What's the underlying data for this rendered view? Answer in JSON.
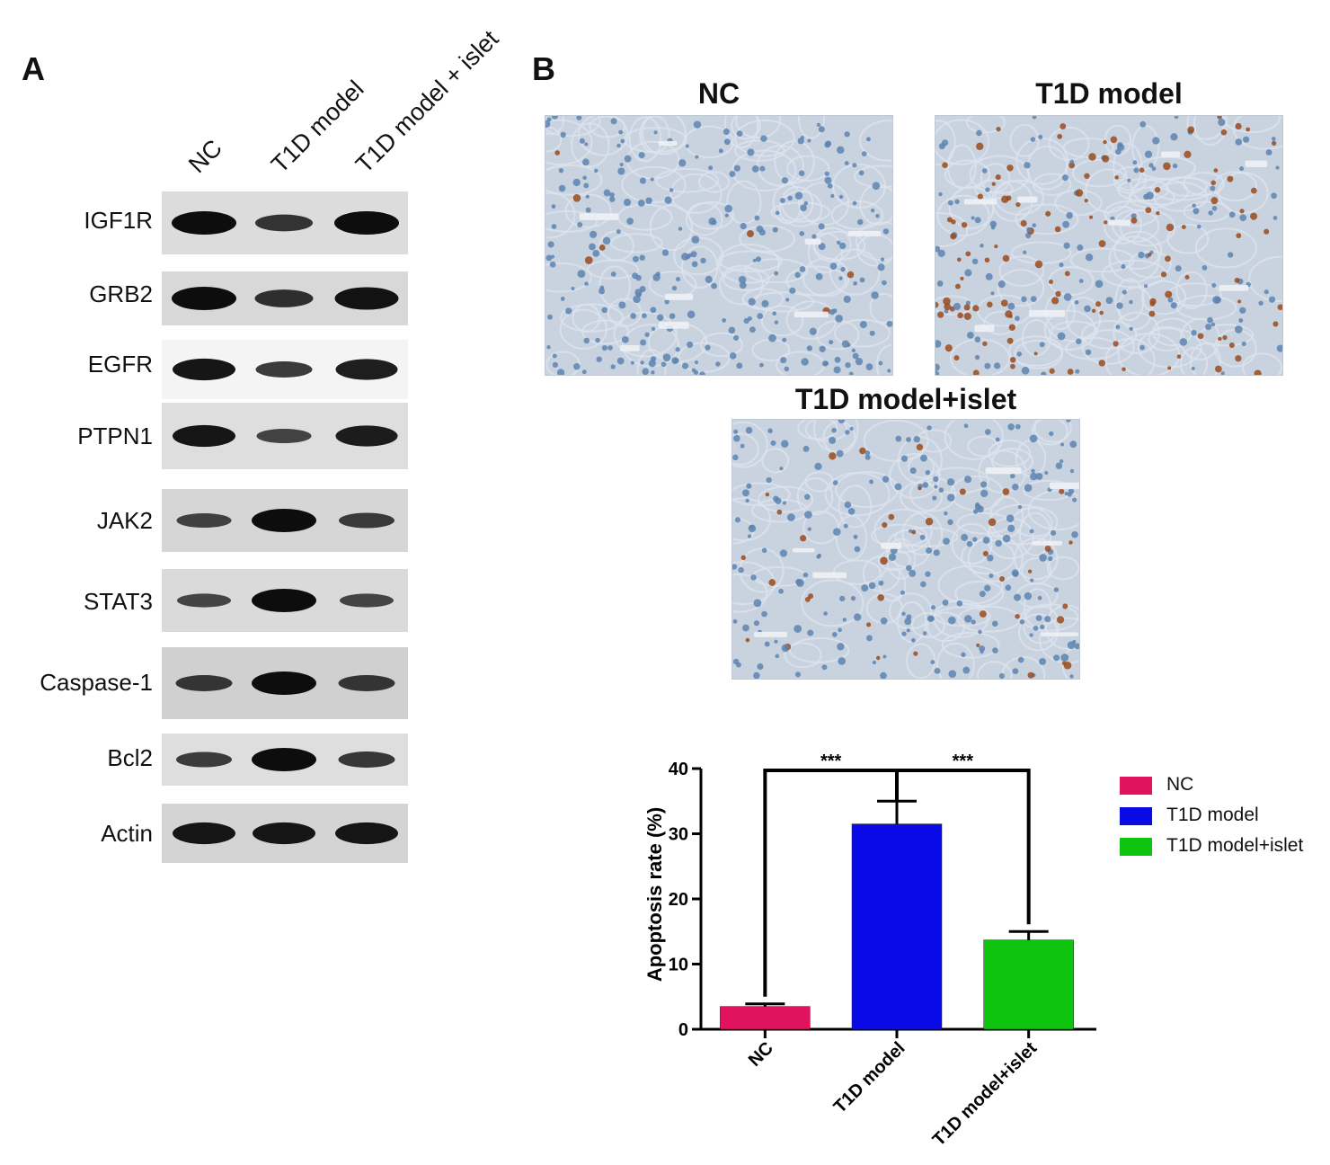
{
  "panels": {
    "a": "A",
    "b": "B"
  },
  "panel_a": {
    "lanes": [
      "NC",
      "T1D model",
      "T1D model + islet"
    ],
    "rows": [
      {
        "label": "IGF1R",
        "bands": [
          1.0,
          0.6,
          1.0
        ],
        "bg": "#dcdcdc"
      },
      {
        "label": "GRB2",
        "bands": [
          1.0,
          0.65,
          0.95
        ],
        "bg": "#d8d8d8"
      },
      {
        "label": "EGFR",
        "bands": [
          0.9,
          0.55,
          0.85
        ],
        "bg": "#f4f4f4"
      },
      {
        "label": "PTPN1",
        "bands": [
          0.9,
          0.45,
          0.85
        ],
        "bg": "#dedede"
      },
      {
        "label": "JAK2",
        "bands": [
          0.45,
          1.0,
          0.5
        ],
        "bg": "#d6d6d6"
      },
      {
        "label": "STAT3",
        "bands": [
          0.4,
          1.0,
          0.4
        ],
        "bg": "#dadada"
      },
      {
        "label": "Caspase-1",
        "bands": [
          0.55,
          1.0,
          0.55
        ],
        "bg": "#d0d0d0"
      },
      {
        "label": "Bcl2",
        "bands": [
          0.5,
          1.0,
          0.55
        ],
        "bg": "#dedede"
      },
      {
        "label": "Actin",
        "bands": [
          0.9,
          0.9,
          0.9
        ],
        "bg": "#d4d4d4"
      }
    ]
  },
  "panel_b": {
    "micrographs": {
      "nc_title": "NC",
      "t1d_title": "T1D model",
      "islet_title": "T1D model+islet"
    }
  },
  "chart_data": {
    "type": "bar",
    "categories": [
      "NC",
      "T1D model",
      "T1D model+islet"
    ],
    "values": [
      3.5,
      31.5,
      13.7
    ],
    "errors": [
      0.4,
      3.5,
      1.3
    ],
    "colors": [
      "#e0145e",
      "#0a0ae6",
      "#0ec40e"
    ],
    "ylabel": "Apoptosis rate (%)",
    "ylim": [
      0,
      40
    ],
    "yticks": [
      "0",
      "10",
      "20",
      "30",
      "40"
    ],
    "significance": [
      {
        "from": "T1D model",
        "to": "NC",
        "label": "***"
      },
      {
        "from": "T1D model",
        "to": "T1D model+islet",
        "label": "***"
      }
    ],
    "legend": {
      "position": "right",
      "entries": [
        "NC",
        "T1D model",
        "T1D model+islet"
      ]
    }
  }
}
